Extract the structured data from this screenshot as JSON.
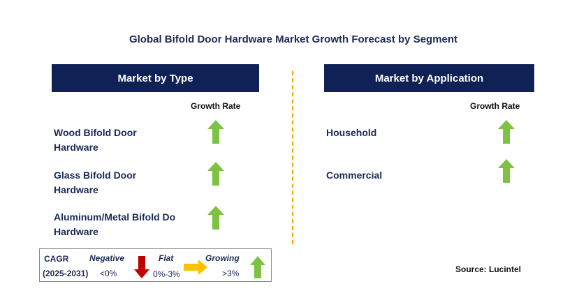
{
  "title": "Global Bifold Door Hardware Market Growth Forecast by Segment",
  "colors": {
    "header_bg": "#0f2155",
    "growing": "#7dc242",
    "negative": "#c00000",
    "flat": "#ffc000",
    "divider": "#f2a900"
  },
  "left_panel": {
    "header": "Market by Type",
    "column_header": "Growth Rate",
    "rows": [
      {
        "line1": "Wood Bifold Door",
        "line2": "Hardware",
        "trend": "growing",
        "icon": "up-arrow-icon"
      },
      {
        "line1": "Glass Bifold Door",
        "line2": "Hardware",
        "trend": "growing",
        "icon": "up-arrow-icon"
      },
      {
        "line1": "Aluminum/Metal Bifold Do",
        "line2": "Hardware",
        "trend": "growing",
        "icon": "up-arrow-icon"
      }
    ]
  },
  "right_panel": {
    "header": "Market by Application",
    "column_header": "Growth Rate",
    "rows": [
      {
        "label": "Household",
        "trend": "growing",
        "icon": "up-arrow-icon"
      },
      {
        "label": "Commercial",
        "trend": "growing",
        "icon": "up-arrow-icon"
      }
    ]
  },
  "legend": {
    "cagr": "CAGR",
    "period": "(2025-2031)",
    "negative_label": "Negative",
    "negative_range": "<0%",
    "flat_label": "Flat",
    "flat_range": "0%-3%",
    "growing_label": "Growing",
    "growing_range": ">3%"
  },
  "source": "Source: Lucintel"
}
